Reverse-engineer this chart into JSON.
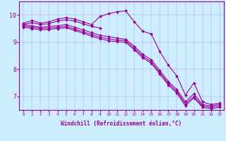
{
  "xlabel": "Windchill (Refroidissement éolien,°C)",
  "background_color": "#cceeff",
  "line_color": "#990099",
  "xlim": [
    -0.5,
    23.5
  ],
  "ylim": [
    6.5,
    10.5
  ],
  "yticks": [
    7,
    8,
    9,
    10
  ],
  "xticks": [
    0,
    1,
    2,
    3,
    4,
    5,
    6,
    7,
    8,
    9,
    10,
    11,
    12,
    13,
    14,
    15,
    16,
    17,
    18,
    19,
    20,
    21,
    22,
    23
  ],
  "series": [
    {
      "x": [
        0,
        1,
        2,
        3,
        4,
        5,
        6,
        7,
        8,
        9,
        10,
        11,
        12,
        13,
        14,
        15,
        16,
        17,
        18,
        19,
        20,
        21,
        22,
        23
      ],
      "y": [
        9.7,
        9.8,
        9.7,
        9.75,
        9.85,
        9.9,
        9.85,
        9.75,
        9.65,
        9.95,
        10.05,
        10.12,
        10.15,
        9.75,
        9.4,
        9.3,
        8.65,
        8.15,
        7.75,
        7.05,
        7.5,
        6.8,
        6.7,
        6.75
      ]
    },
    {
      "x": [
        0,
        1,
        2,
        3,
        4,
        5,
        6,
        7,
        8,
        9
      ],
      "y": [
        9.65,
        9.72,
        9.65,
        9.68,
        9.78,
        9.82,
        9.78,
        9.68,
        9.58,
        9.52
      ]
    },
    {
      "x": [
        0,
        1,
        2,
        3,
        4,
        5,
        6,
        7,
        8,
        9,
        10,
        11,
        12,
        13,
        14,
        15,
        16,
        17,
        18,
        19,
        20,
        21,
        22,
        23
      ],
      "y": [
        9.65,
        9.6,
        9.55,
        9.58,
        9.6,
        9.65,
        9.55,
        9.45,
        9.35,
        9.25,
        9.2,
        9.15,
        9.1,
        8.85,
        8.55,
        8.35,
        7.95,
        7.55,
        7.25,
        6.8,
        7.1,
        6.7,
        6.65,
        6.7
      ]
    },
    {
      "x": [
        0,
        1,
        2,
        3,
        4,
        5,
        6,
        7,
        8,
        9,
        10,
        11,
        12,
        13,
        14,
        15,
        16,
        17,
        18,
        19,
        20,
        21,
        22,
        23
      ],
      "y": [
        9.6,
        9.55,
        9.5,
        9.52,
        9.55,
        9.58,
        9.48,
        9.38,
        9.28,
        9.18,
        9.12,
        9.08,
        9.05,
        8.78,
        8.48,
        8.28,
        7.88,
        7.48,
        7.18,
        6.72,
        7.0,
        6.65,
        6.6,
        6.65
      ]
    },
    {
      "x": [
        0,
        1,
        2,
        3,
        4,
        5,
        6,
        7,
        8,
        9,
        10,
        11,
        12,
        13,
        14,
        15,
        16,
        17,
        18,
        19,
        20,
        21,
        22,
        23
      ],
      "y": [
        9.55,
        9.5,
        9.45,
        9.47,
        9.5,
        9.53,
        9.43,
        9.33,
        9.22,
        9.12,
        9.05,
        9.02,
        8.99,
        8.72,
        8.42,
        8.22,
        7.82,
        7.42,
        7.12,
        6.65,
        6.95,
        6.6,
        6.55,
        6.6
      ]
    }
  ]
}
